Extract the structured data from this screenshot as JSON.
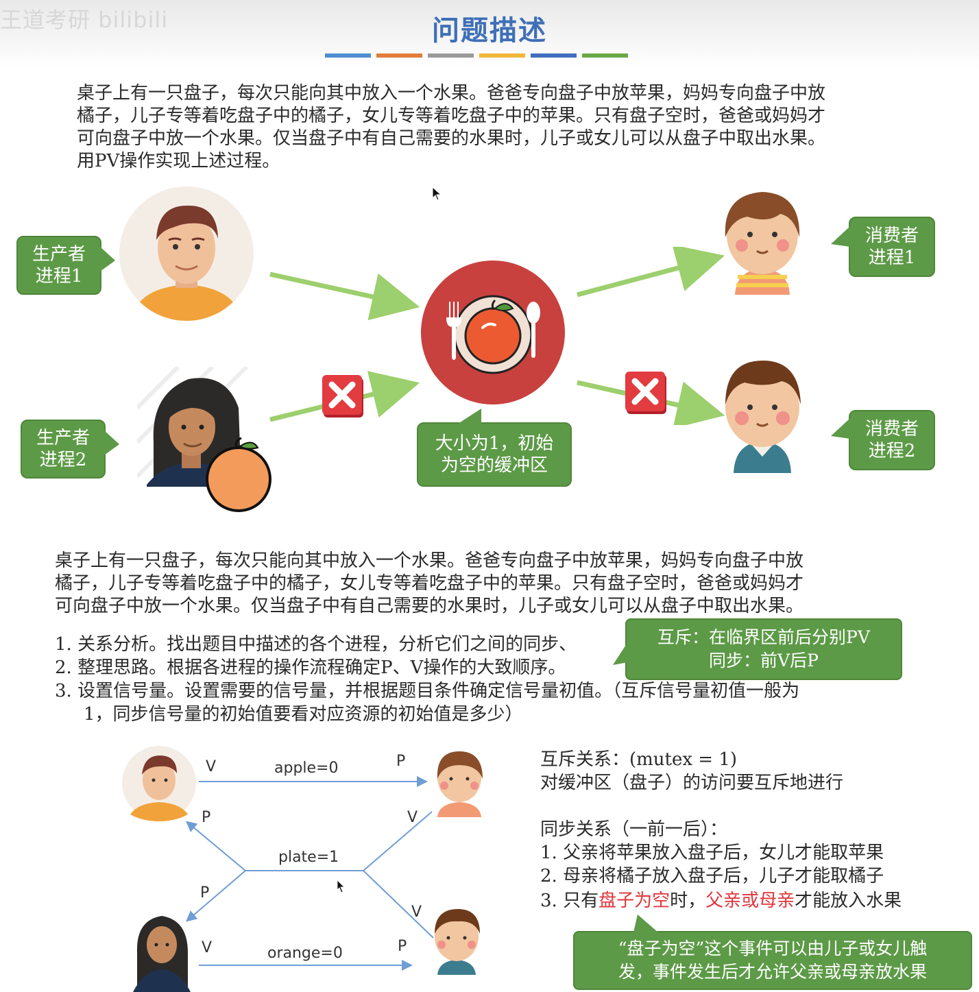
{
  "header": {
    "watermark": "王道考研 bilibili",
    "title": "问题描述",
    "bar_colors": [
      "#4e8ed3",
      "#e27d3b",
      "#9a9a9a",
      "#f0b63a",
      "#3f6fbf",
      "#6aaa45"
    ]
  },
  "intro": {
    "line1": "桌子上有一只盘子，每次只能向其中放入一个水果。爸爸专向盘子中放苹果，妈妈专向盘子中放",
    "line2": "橘子，儿子专等着吃盘子中的橘子，女儿专等着吃盘子中的苹果。只有盘子空时，爸爸或妈妈才",
    "line3": "可向盘子中放一个水果。仅当盘子中有自己需要的水果时，儿子或女儿可以从盘子中取出水果。",
    "line4": "用PV操作实现上述过程。"
  },
  "figure": {
    "producer1": [
      "生产者",
      "进程1"
    ],
    "producer2": [
      "生产者",
      "进程2"
    ],
    "consumer1": [
      "消费者",
      "进程1"
    ],
    "consumer2": [
      "消费者",
      "进程2"
    ],
    "buffer": [
      "大小为1，初始",
      "为空的缓冲区"
    ]
  },
  "recap": {
    "line1": "桌子上有一只盘子，每次只能向其中放入一个水果。爸爸专向盘子中放苹果，妈妈专向盘子中放",
    "line2": "橘子，儿子专等着吃盘子中的橘子，女儿专等着吃盘子中的苹果。只有盘子空时，爸爸或妈妈才",
    "line3": "可向盘子中放一个水果。仅当盘子中有自己需要的水果时，儿子或女儿可以从盘子中取出水果。"
  },
  "steps": {
    "s1": "1.  关系分析。找出题目中描述的各个进程，分析它们之间的同步、",
    "s2": "2.  整理思路。根据各进程的操作流程确定P、V操作的大致顺序。",
    "s3": "3.  设置信号量。设置需要的信号量，并根据题目条件确定信号量初值。（互斥信号量初值一般为",
    "s3b": "1，同步信号量的初始值要看对应资源的初始值是多少）"
  },
  "tip": {
    "line1": "互斥：在临界区前后分别PV",
    "line2": "同步：前V后P"
  },
  "diagram": {
    "apple": "apple=0",
    "plate": "plate=1",
    "orange": "orange=0",
    "V": "V",
    "P": "P"
  },
  "analysis": {
    "mutex": "互斥关系：(mutex = 1)",
    "mutex_desc": "对缓冲区（盘子）的访问要互斥地进行",
    "sync_title": "同步关系（一前一后）：",
    "item1": "1.   父亲将苹果放入盘子后，女儿才能取苹果",
    "item2": "2.   母亲将橘子放入盘子后，儿子才能取橘子",
    "item3_pre": "3.   只有",
    "item3_red1": "盘子为空",
    "item3_mid": "时，",
    "item3_red2": "父亲或母亲",
    "item3_post": "才能放入水果",
    "note_line1": "“盘子为空”这个事件可以由儿子或女儿触",
    "note_line2": "发，事件发生后才允许父亲或母亲放水果"
  },
  "colors": {
    "callout_green": "#5d9a47",
    "title_blue": "#3e6fb7",
    "highlight_red": "#e0343a",
    "plate_red": "#c8413f"
  }
}
